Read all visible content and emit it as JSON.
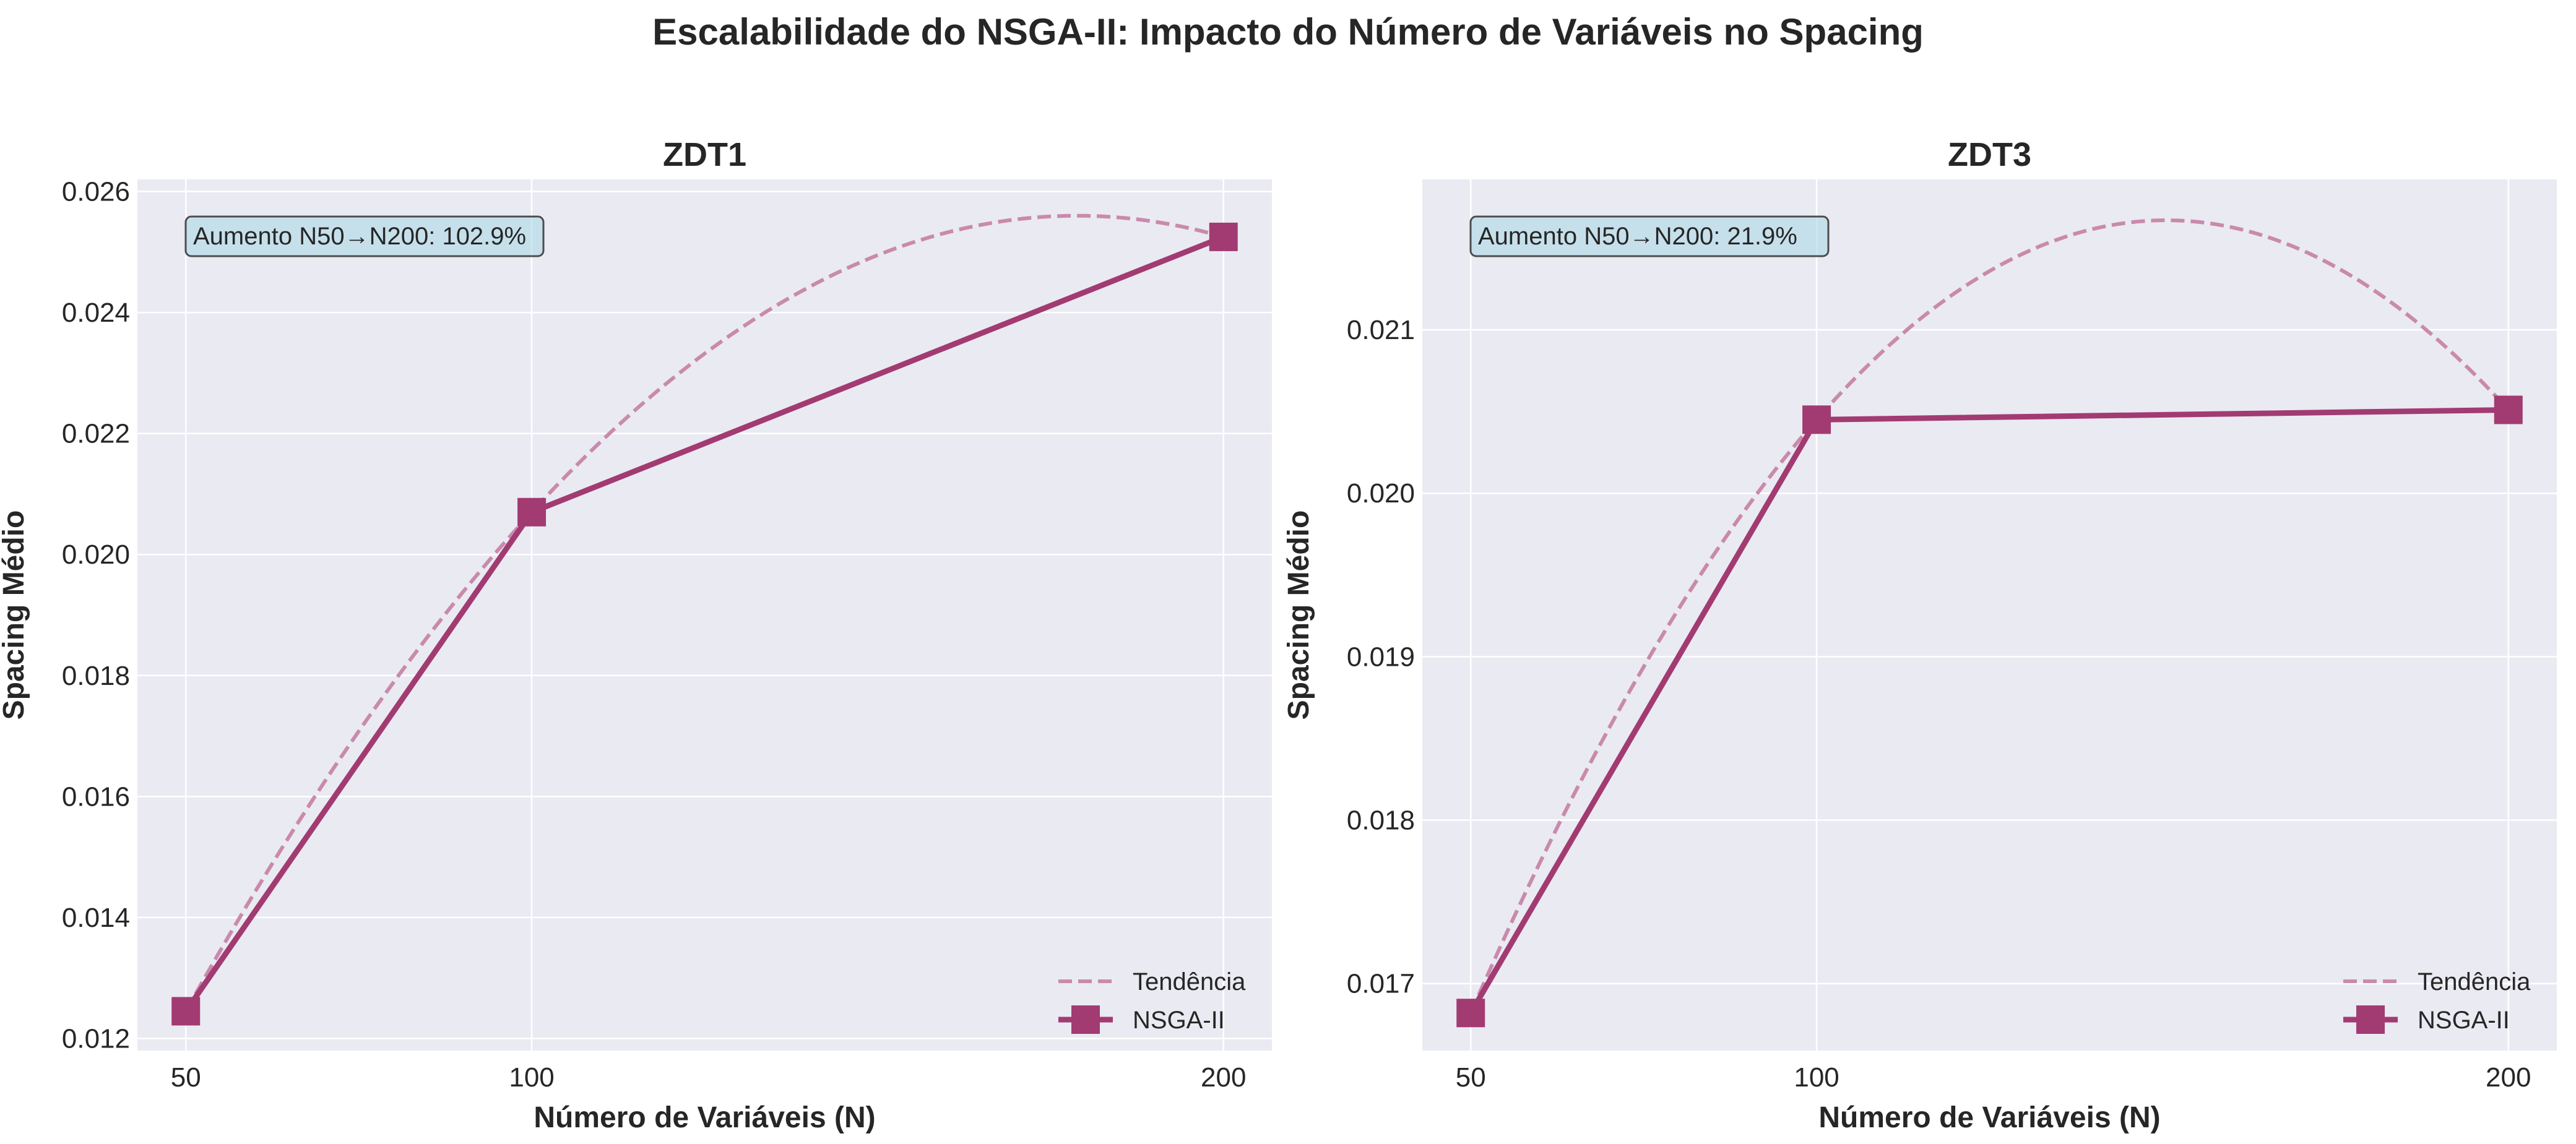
{
  "suptitle": "Escalabilidade do NSGA-II: Impacto do Número de Variáveis no Spacing",
  "colors": {
    "background": "#ffffff",
    "axes_face": "#eaeaf2",
    "grid": "#ffffff",
    "series": "#a23b72",
    "trend": "#c98aac",
    "annotation_fill": "#add8e6",
    "annotation_edge": "#4d4d4d",
    "text": "#262626"
  },
  "chart_data": [
    {
      "type": "line",
      "title": "ZDT1",
      "xlabel": "Número de Variáveis (N)",
      "ylabel": "Spacing Médio",
      "x": [
        50,
        100,
        200
      ],
      "x_tick_labels": [
        "50",
        "100",
        "200"
      ],
      "xlim": [
        43,
        207
      ],
      "ylim": [
        0.0118,
        0.0262
      ],
      "y_ticks": [
        0.012,
        0.014,
        0.016,
        0.018,
        0.02,
        0.022,
        0.024,
        0.026
      ],
      "y_tick_labels": [
        "0.012",
        "0.014",
        "0.016",
        "0.018",
        "0.020",
        "0.022",
        "0.024",
        "0.026"
      ],
      "grid": true,
      "legend_position": "lower-right",
      "series": [
        {
          "name": "Tendência",
          "kind": "trend",
          "style": "dashed",
          "trend_points": [
            [
              50,
              0.01245
            ],
            [
              100,
              0.0207
            ],
            [
              179,
              0.0256
            ],
            [
              200,
              0.02525
            ]
          ]
        },
        {
          "name": "NSGA-II",
          "kind": "data",
          "style": "solid",
          "marker": "square",
          "values": [
            0.01245,
            0.0207,
            0.02525
          ]
        }
      ],
      "annotation": "Aumento N50→N200: 102.9%"
    },
    {
      "type": "line",
      "title": "ZDT3",
      "xlabel": "Número de Variáveis (N)",
      "ylabel": "Spacing Médio",
      "x": [
        50,
        100,
        200
      ],
      "x_tick_labels": [
        "50",
        "100",
        "200"
      ],
      "xlim": [
        43,
        207
      ],
      "ylim": [
        0.01659,
        0.02192
      ],
      "y_ticks": [
        0.017,
        0.018,
        0.019,
        0.02,
        0.021
      ],
      "y_tick_labels": [
        "0.017",
        "0.018",
        "0.019",
        "0.020",
        "0.021"
      ],
      "grid": true,
      "legend_position": "lower-right",
      "series": [
        {
          "name": "Tendência",
          "kind": "trend",
          "style": "dashed",
          "trend_points": [
            [
              50,
              0.01682
            ],
            [
              100,
              0.02045
            ],
            [
              150,
              0.02167
            ],
            [
              200,
              0.02051
            ]
          ]
        },
        {
          "name": "NSGA-II",
          "kind": "data",
          "style": "solid",
          "marker": "square",
          "values": [
            0.01682,
            0.02045,
            0.02051
          ]
        }
      ],
      "annotation": "Aumento N50→N200: 21.9%"
    }
  ]
}
